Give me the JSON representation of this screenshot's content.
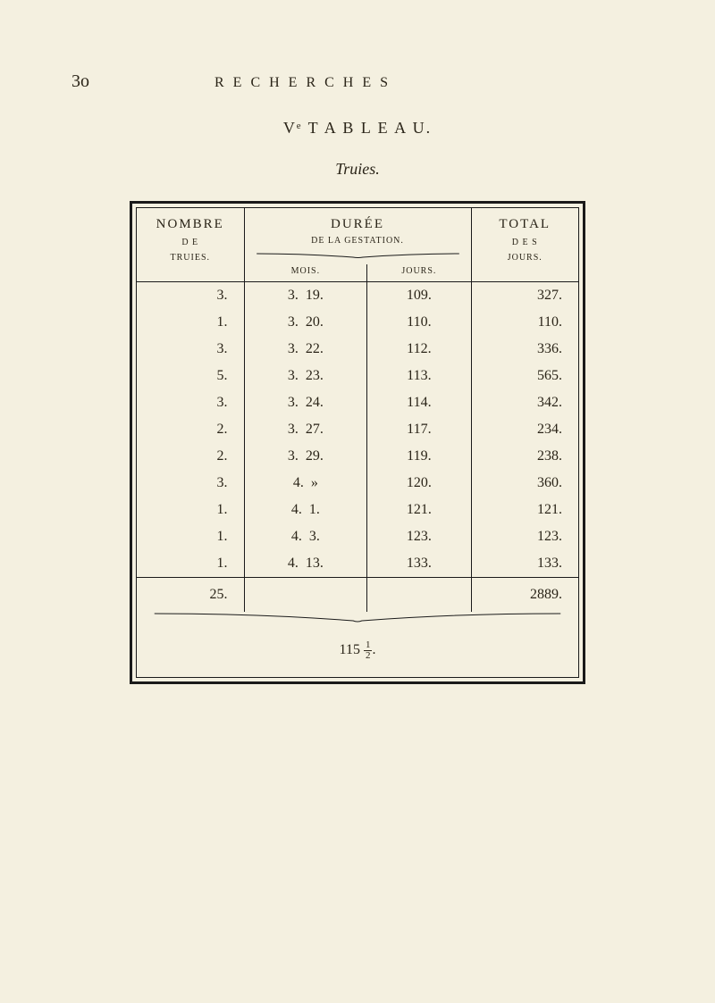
{
  "page_number": "3o",
  "header": "R E C H E R C H E S",
  "tableau_title": "Vᵉ  T A B L E A U.",
  "subtitle": "Truies.",
  "cols": {
    "nombre_main": "NOMBRE",
    "nombre_sub1": "D E",
    "nombre_sub2": "TRUIES.",
    "duree_main": "DURÉE",
    "duree_sub": "DE  LA  GESTATION.",
    "mois": "MOIS.",
    "jours": "JOURS.",
    "total_main": "TOTAL",
    "total_sub1": "D E S",
    "total_sub2": "JOURS."
  },
  "rows": [
    {
      "n": "3.",
      "m": "3.",
      "mj": "19.",
      "j": "109.",
      "t": "327."
    },
    {
      "n": "1.",
      "m": "3.",
      "mj": "20.",
      "j": "110.",
      "t": "110."
    },
    {
      "n": "3.",
      "m": "3.",
      "mj": "22.",
      "j": "112.",
      "t": "336."
    },
    {
      "n": "5.",
      "m": "3.",
      "mj": "23.",
      "j": "113.",
      "t": "565."
    },
    {
      "n": "3.",
      "m": "3.",
      "mj": "24.",
      "j": "114.",
      "t": "342."
    },
    {
      "n": "2.",
      "m": "3.",
      "mj": "27.",
      "j": "117.",
      "t": "234."
    },
    {
      "n": "2.",
      "m": "3.",
      "mj": "29.",
      "j": "119.",
      "t": "238."
    },
    {
      "n": "3.",
      "m": "4.",
      "mj": "»",
      "j": "120.",
      "t": "360."
    },
    {
      "n": "1.",
      "m": "4.",
      "mj": "1.",
      "j": "121.",
      "t": "121."
    },
    {
      "n": "1.",
      "m": "4.",
      "mj": "3.",
      "j": "123.",
      "t": "123."
    },
    {
      "n": "1.",
      "m": "4.",
      "mj": "13.",
      "j": "133.",
      "t": "133."
    }
  ],
  "sum": {
    "n": "25.",
    "t": "2889."
  },
  "avg_base": "115",
  "avg_frac_num": "1",
  "avg_frac_den": "2",
  "avg_suffix": "."
}
